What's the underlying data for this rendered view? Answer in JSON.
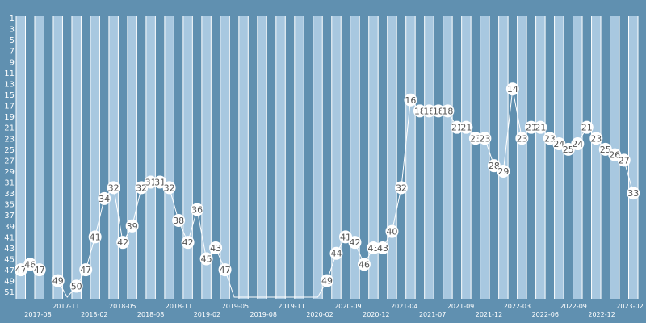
{
  "chart_data": {
    "type": "line",
    "y_inverted": true,
    "ylim": [
      1,
      52
    ],
    "y_ticks": [
      1,
      3,
      5,
      7,
      9,
      11,
      13,
      15,
      17,
      19,
      21,
      23,
      25,
      27,
      29,
      31,
      33,
      35,
      37,
      39,
      41,
      43,
      45,
      47,
      49,
      51
    ],
    "x_labels": [
      "2017-08",
      "2017-11",
      "2018-02",
      "2018-05",
      "2018-08",
      "2018-11",
      "2019-02",
      "2019-05",
      "2019-08",
      "2019-11",
      "2020-02",
      "2020-09",
      "2020-12",
      "2021-04",
      "2021-07",
      "2021-09",
      "2021-12",
      "2022-03",
      "2022-06",
      "2022-09",
      "2022-12",
      "2023-02"
    ],
    "values": [
      47,
      46,
      47,
      null,
      49,
      52,
      50,
      47,
      41,
      34,
      32,
      42,
      39,
      32,
      31,
      31,
      32,
      38,
      42,
      36,
      45,
      43,
      47,
      52,
      52,
      52,
      52,
      52,
      52,
      52,
      52,
      52,
      52,
      49,
      44,
      41,
      42,
      46,
      43,
      43,
      40,
      32,
      16,
      18,
      18,
      18,
      18,
      21,
      21,
      23,
      23,
      28,
      29,
      14,
      23,
      21,
      21,
      23,
      24,
      25,
      24,
      21,
      23,
      25,
      26,
      27,
      33
    ],
    "labeled": [
      true,
      true,
      true,
      false,
      true,
      false,
      true,
      true,
      true,
      true,
      true,
      true,
      true,
      true,
      true,
      true,
      true,
      true,
      true,
      true,
      true,
      true,
      true,
      false,
      false,
      false,
      false,
      false,
      false,
      false,
      false,
      false,
      false,
      true,
      true,
      true,
      true,
      true,
      true,
      true,
      true,
      true,
      true,
      true,
      true,
      true,
      true,
      true,
      true,
      true,
      true,
      true,
      true,
      true,
      true,
      true,
      true,
      true,
      true,
      true,
      true,
      true,
      true,
      true,
      true,
      true,
      true
    ],
    "grid": true,
    "colors": {
      "background": "#6090b0",
      "band_light": "#a8c8e0",
      "band_dark": "#6090b0",
      "line": "#ffffff",
      "marker_fill": "#ffffff",
      "label_text": "#555555"
    }
  }
}
